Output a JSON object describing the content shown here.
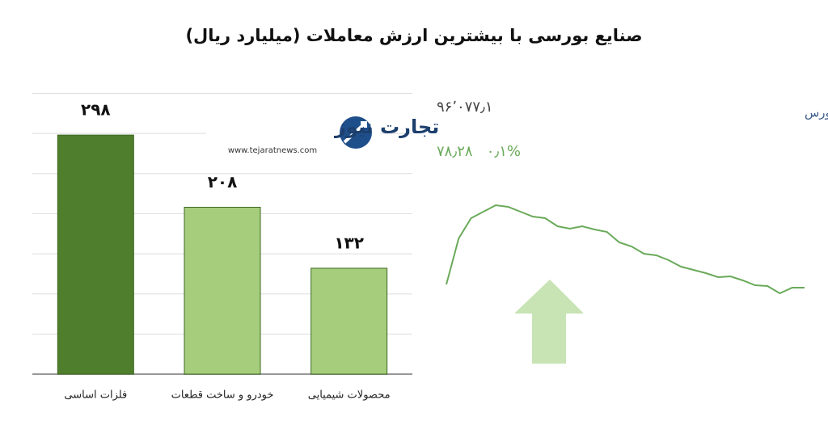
{
  "header": {
    "title": "صنایع بورسی با بیشترین ارزش معاملات  (میلیارد ریال)"
  },
  "logo": {
    "name": "تجارت نیوز",
    "url": "www.tejaratnews.com"
  },
  "chart_data": [
    {
      "type": "bar",
      "categories": [
        "فلزات اساسی",
        "خودرو و ساخت قطعات",
        "محصولات شیمیایی"
      ],
      "values": [
        298,
        208,
        132
      ],
      "value_labels": [
        "۲۹۸",
        "۲۰۸",
        "۱۳۲"
      ],
      "colors": [
        "#4f7f2c",
        "#a6cd7b",
        "#a6cd7b"
      ],
      "ylim": [
        0,
        350
      ],
      "yticks": [
        0,
        50,
        100,
        150,
        200,
        250,
        300,
        350
      ],
      "show_ytick_labels": false,
      "grid": true
    },
    {
      "type": "line",
      "title": "کل بورس",
      "annotations": [
        "۹۶٬۰۷۷٫۱",
        "۷۸٫۲۸   ۰٫۱%"
      ],
      "values": [
        48,
        105,
        130,
        138,
        146,
        144,
        138,
        132,
        130,
        120,
        117,
        120,
        116,
        113,
        100,
        95,
        86,
        84,
        78,
        70,
        66,
        62,
        57,
        58,
        53,
        47,
        46,
        37,
        44,
        44
      ],
      "color": "#6aaa5a",
      "ylim": [
        0,
        160
      ]
    }
  ]
}
